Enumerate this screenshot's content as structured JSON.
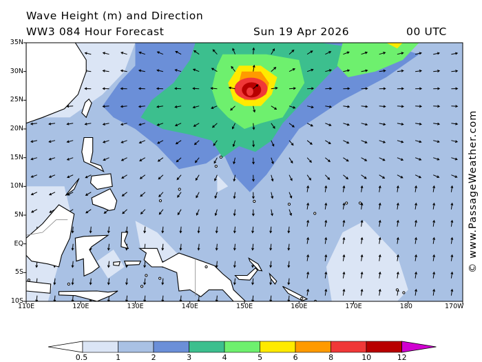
{
  "header": {
    "title": "Wave Height (m) and Direction",
    "model": "WW3 084 Hour Forecast",
    "date": "Sun 19 Apr 2026",
    "time": "00 UTC"
  },
  "credit": "© www.PassageWeather.com",
  "map": {
    "lon_labels": [
      "110E",
      "120E",
      "130E",
      "140E",
      "150E",
      "160E",
      "170E",
      "180",
      "170W"
    ],
    "lat_labels": [
      "35N",
      "30N",
      "25N",
      "20N",
      "15N",
      "10N",
      "5N",
      "EQ",
      "5S",
      "10S"
    ],
    "storm_center": {
      "lon": 151,
      "lat": 26.5,
      "peak_wave_height_m": 12
    },
    "colors": {
      "land": "#ffffff",
      "coast": "#000000",
      "ocean_default": "#a9c1e4"
    }
  },
  "legend": {
    "labels": [
      "0.5",
      "1",
      "2",
      "3",
      "4",
      "5",
      "6",
      "8",
      "10",
      "12"
    ],
    "colors": [
      "#dbe5f5",
      "#a9c1e4",
      "#6b8fd8",
      "#3cbf8e",
      "#6ef06e",
      "#ffea00",
      "#ff9a00",
      "#f03838",
      "#b80000",
      "#d000d0"
    ],
    "units": "m"
  }
}
